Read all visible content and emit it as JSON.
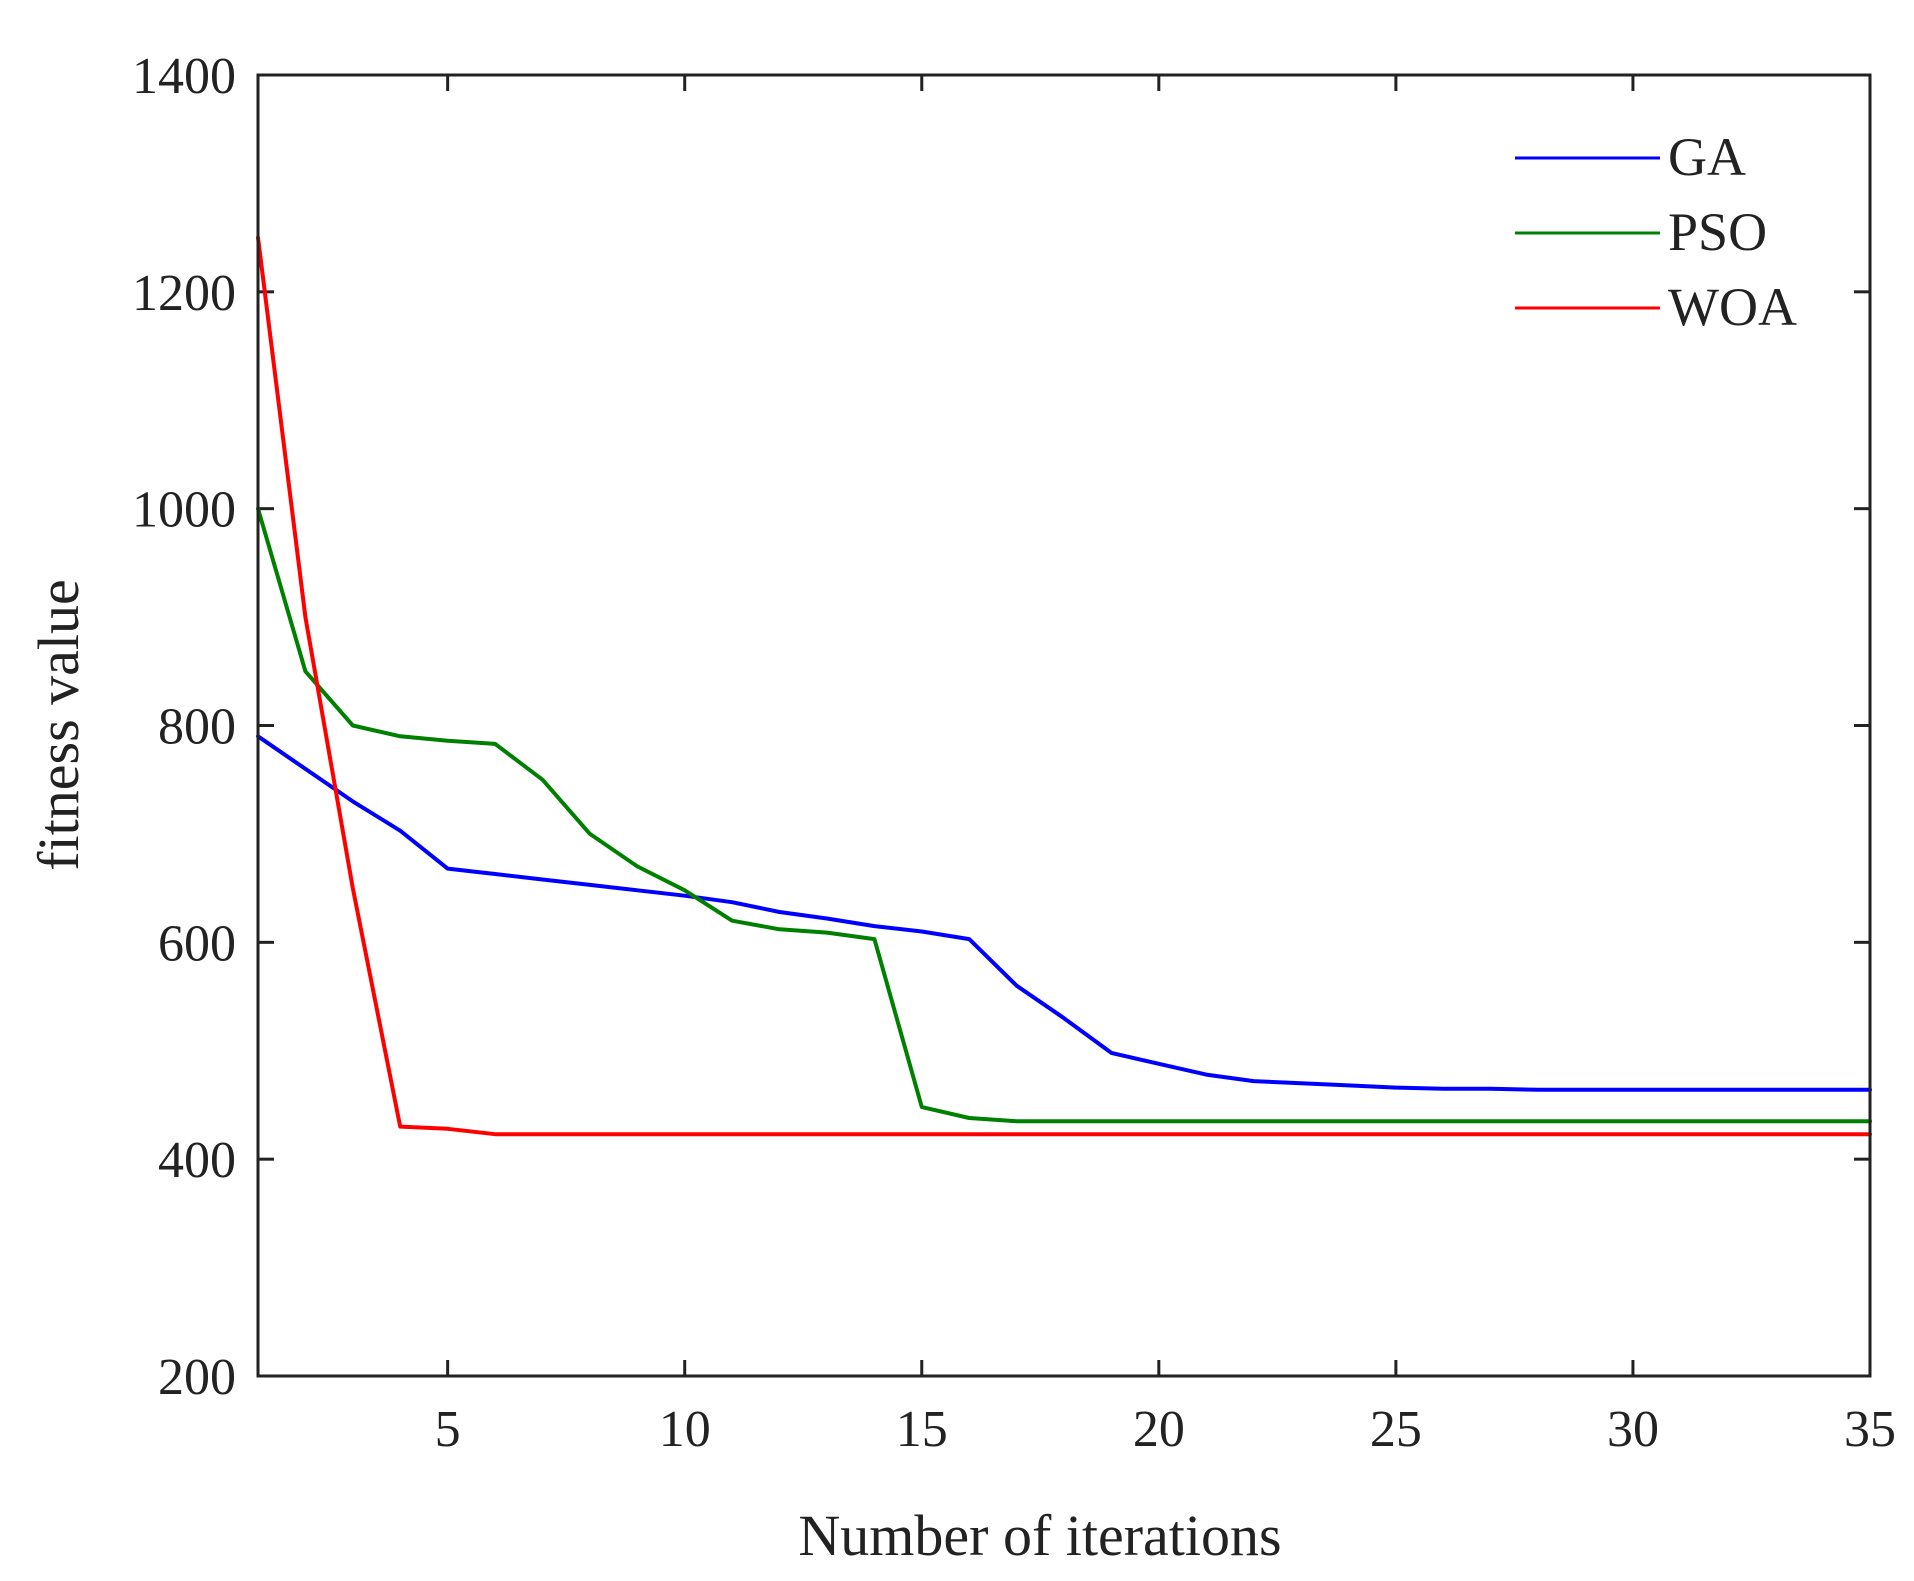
{
  "chart_data": {
    "type": "line",
    "title": "",
    "xlabel": "Number of iterations",
    "ylabel": "fitness value",
    "xlim": [
      1,
      35
    ],
    "ylim": [
      200,
      1400
    ],
    "xticks": [
      5,
      10,
      15,
      20,
      25,
      30,
      35
    ],
    "yticks": [
      200,
      400,
      600,
      800,
      1000,
      1200,
      1400
    ],
    "grid": false,
    "legend_position": "top-right",
    "x": [
      1,
      2,
      3,
      4,
      5,
      6,
      7,
      8,
      9,
      10,
      11,
      12,
      13,
      14,
      15,
      16,
      17,
      18,
      19,
      20,
      21,
      22,
      23,
      24,
      25,
      26,
      27,
      28,
      29,
      30,
      31,
      32,
      33,
      34,
      35
    ],
    "series": [
      {
        "name": "GA",
        "color": "#0000ff",
        "values": [
          790,
          760,
          730,
          703,
          668,
          663,
          658,
          653,
          648,
          643,
          637,
          628,
          622,
          615,
          610,
          603,
          560,
          530,
          498,
          488,
          478,
          472,
          470,
          468,
          466,
          465,
          465,
          464,
          464,
          464,
          464,
          464,
          464,
          464,
          464
        ]
      },
      {
        "name": "PSO",
        "color": "#008000",
        "values": [
          1000,
          850,
          800,
          790,
          786,
          783,
          750,
          700,
          670,
          648,
          620,
          612,
          609,
          603,
          448,
          438,
          435,
          435,
          435,
          435,
          435,
          435,
          435,
          435,
          435,
          435,
          435,
          435,
          435,
          435,
          435,
          435,
          435,
          435,
          435
        ]
      },
      {
        "name": "WOA",
        "color": "#ff0000",
        "values": [
          1250,
          900,
          650,
          430,
          428,
          423,
          423,
          423,
          423,
          423,
          423,
          423,
          423,
          423,
          423,
          423,
          423,
          423,
          423,
          423,
          423,
          423,
          423,
          423,
          423,
          423,
          423,
          423,
          423,
          423,
          423,
          423,
          423,
          423,
          423
        ]
      }
    ]
  }
}
